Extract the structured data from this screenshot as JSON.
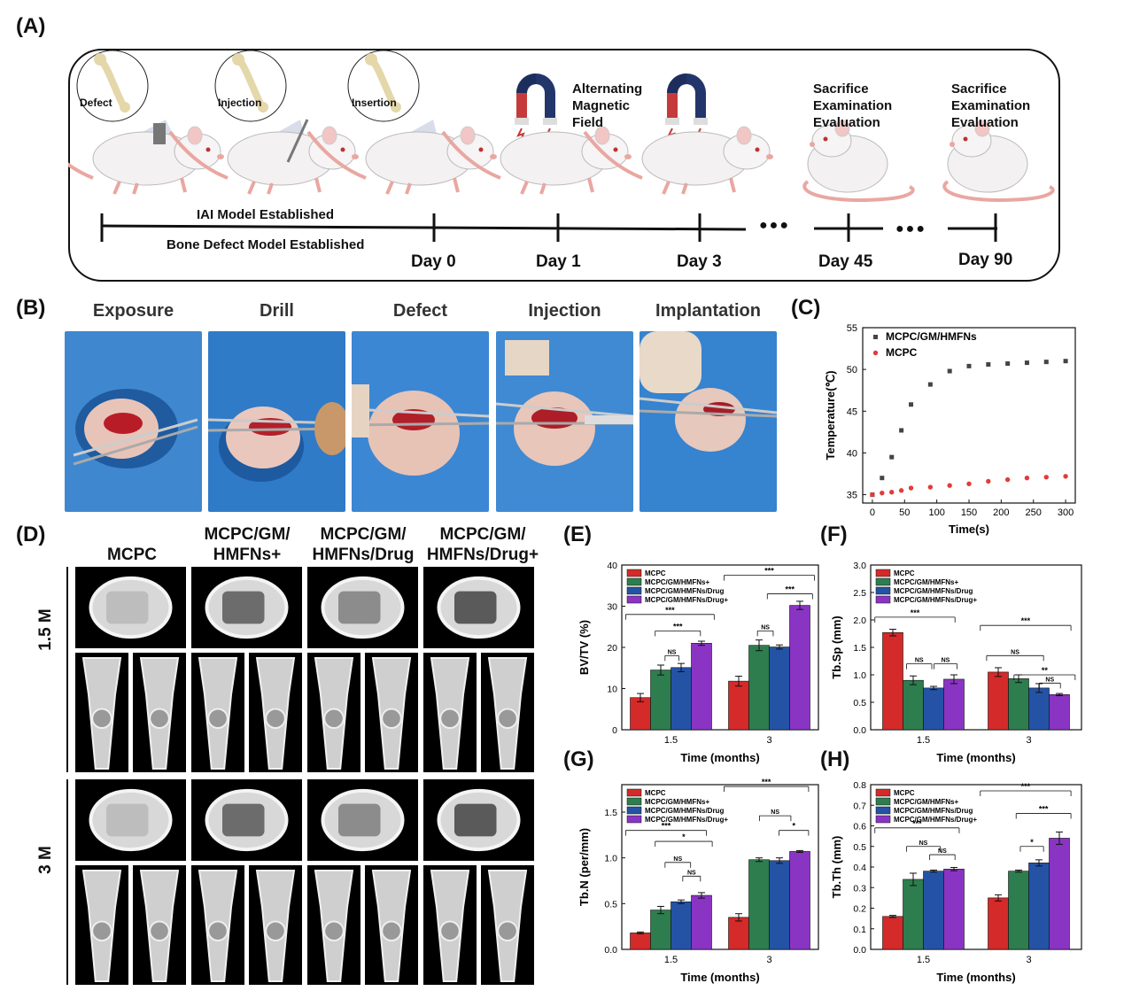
{
  "panel_labels": {
    "a": "(A)",
    "b": "(B)",
    "c": "(C)",
    "d": "(D)",
    "e": "(E)",
    "f": "(F)",
    "g": "(G)",
    "h": "(H)"
  },
  "timeline": {
    "steps": [
      "Defect",
      "Injection",
      "Insertion"
    ],
    "field_label": [
      "Alternating",
      "Magnetic",
      "Field"
    ],
    "sacrifice_label": [
      "Sacrifice",
      "Examination",
      "Evaluation"
    ],
    "model_top": "IAI Model Established",
    "model_bottom": "Bone Defect Model Established",
    "days": [
      "Day 0",
      "Day 1",
      "Day 3",
      "Day 45",
      "Day 90"
    ],
    "ellipsis": "●●●"
  },
  "surgery": {
    "titles": [
      "Exposure",
      "Drill",
      "Defect",
      "Injection",
      "Implantation"
    ]
  },
  "ct": {
    "columns": [
      "MCPC",
      "MCPC/GM/\nHMFNs+",
      "MCPC/GM/\nHMFNs/Drug",
      "MCPC/GM/\nHMFNs/Drug+"
    ],
    "rows": [
      "1.5 M",
      "3 M"
    ]
  },
  "colors": {
    "red": "#d42a2a",
    "green": "#2e7d4f",
    "blue": "#2453a6",
    "purple": "#8a34c4",
    "dark": "#444444",
    "pt_red": "#e23b3b"
  },
  "chart_data": [
    {
      "id": "C",
      "type": "scatter",
      "xlabel": "Time(s)",
      "ylabel": "Temperature(℃)",
      "xlim": [
        -15,
        315
      ],
      "ylim": [
        34,
        55
      ],
      "xticks": [
        0,
        50,
        100,
        150,
        200,
        250,
        300
      ],
      "yticks": [
        35,
        40,
        45,
        50,
        55
      ],
      "legend_position": "top-left",
      "series": [
        {
          "name": "MCPC/GM/HMFNs",
          "color": "#444444",
          "x": [
            0,
            15,
            30,
            45,
            60,
            90,
            120,
            150,
            180,
            210,
            240,
            270,
            300
          ],
          "y": [
            35.0,
            37.0,
            39.5,
            42.7,
            45.8,
            48.2,
            49.8,
            50.4,
            50.6,
            50.7,
            50.8,
            50.9,
            51.0
          ]
        },
        {
          "name": "MCPC",
          "color": "#e23b3b",
          "x": [
            0,
            15,
            30,
            45,
            60,
            90,
            120,
            150,
            180,
            210,
            240,
            270,
            300
          ],
          "y": [
            35.0,
            35.2,
            35.3,
            35.5,
            35.8,
            35.9,
            36.1,
            36.3,
            36.6,
            36.8,
            37.0,
            37.1,
            37.2
          ]
        }
      ]
    },
    {
      "id": "E",
      "type": "bar",
      "xlabel": "Time (months)",
      "ylabel": "BV/TV (%)",
      "categories": [
        "1.5",
        "3"
      ],
      "ylim": [
        0,
        40
      ],
      "yticks": [
        0,
        10,
        20,
        30,
        40
      ],
      "legend_position": "top-left",
      "series": [
        {
          "name": "MCPC",
          "values": [
            7.8,
            11.8
          ],
          "errors": [
            1.0,
            1.2
          ]
        },
        {
          "name": "MCPC/GM/HMFNs+",
          "values": [
            14.5,
            20.5
          ],
          "errors": [
            1.2,
            1.3
          ]
        },
        {
          "name": "MCPC/GM/HMFNs/Drug",
          "values": [
            15.1,
            20.1
          ],
          "errors": [
            1.0,
            0.5
          ]
        },
        {
          "name": "MCPC/GM/HMFNs/Drug+",
          "values": [
            21.0,
            30.2
          ],
          "errors": [
            0.5,
            1.0
          ]
        }
      ],
      "annotations": [
        "***",
        "***",
        "NS",
        "***",
        "***",
        "NS"
      ]
    },
    {
      "id": "F",
      "type": "bar",
      "xlabel": "Time (months)",
      "ylabel": "Tb.Sp (mm)",
      "categories": [
        "1.5",
        "3"
      ],
      "ylim": [
        0,
        3.0
      ],
      "yticks": [
        0.0,
        0.5,
        1.0,
        1.5,
        2.0,
        2.5,
        3.0
      ],
      "legend_position": "top-left",
      "series": [
        {
          "name": "MCPC",
          "values": [
            1.77,
            1.05
          ],
          "errors": [
            0.06,
            0.08
          ]
        },
        {
          "name": "MCPC/GM/HMFNs+",
          "values": [
            0.9,
            0.93
          ],
          "errors": [
            0.08,
            0.07
          ]
        },
        {
          "name": "MCPC/GM/HMFNs/Drug",
          "values": [
            0.76,
            0.76
          ],
          "errors": [
            0.03,
            0.08
          ]
        },
        {
          "name": "MCPC/GM/HMFNs/Drug+",
          "values": [
            0.92,
            0.64
          ],
          "errors": [
            0.08,
            0.02
          ]
        }
      ],
      "annotations": [
        "***",
        "NS",
        "NS",
        "***",
        "NS",
        "**",
        "NS"
      ]
    },
    {
      "id": "G",
      "type": "bar",
      "xlabel": "Time (months)",
      "ylabel": "Tb.N (per/mm)",
      "categories": [
        "1.5",
        "3"
      ],
      "ylim": [
        0,
        1.8
      ],
      "yticks": [
        0.0,
        0.5,
        1.0,
        1.5
      ],
      "legend_position": "top-left",
      "series": [
        {
          "name": "MCPC",
          "values": [
            0.18,
            0.35
          ],
          "errors": [
            0.01,
            0.04
          ]
        },
        {
          "name": "MCPC/GM/HMFNs+",
          "values": [
            0.43,
            0.98
          ],
          "errors": [
            0.04,
            0.02
          ]
        },
        {
          "name": "MCPC/GM/HMFNs/Drug",
          "values": [
            0.52,
            0.97
          ],
          "errors": [
            0.02,
            0.03
          ]
        },
        {
          "name": "MCPC/GM/HMFNs/Drug+",
          "values": [
            0.59,
            1.07
          ],
          "errors": [
            0.03,
            0.01
          ]
        }
      ],
      "annotations": [
        "***",
        "*",
        "NS",
        "NS",
        "***",
        "NS",
        "*"
      ]
    },
    {
      "id": "H",
      "type": "bar",
      "xlabel": "Time (months)",
      "ylabel": "Tb.Th (mm)",
      "categories": [
        "1.5",
        "3"
      ],
      "ylim": [
        0,
        0.8
      ],
      "yticks": [
        0.0,
        0.1,
        0.2,
        0.3,
        0.4,
        0.5,
        0.6,
        0.7,
        0.8
      ],
      "legend_position": "top-left",
      "series": [
        {
          "name": "MCPC",
          "values": [
            0.16,
            0.25
          ],
          "errors": [
            0.005,
            0.015
          ]
        },
        {
          "name": "MCPC/GM/HMFNs+",
          "values": [
            0.34,
            0.38
          ],
          "errors": [
            0.03,
            0.005
          ]
        },
        {
          "name": "MCPC/GM/HMFNs/Drug",
          "values": [
            0.38,
            0.42
          ],
          "errors": [
            0.005,
            0.015
          ]
        },
        {
          "name": "MCPC/GM/HMFNs/Drug+",
          "values": [
            0.39,
            0.54
          ],
          "errors": [
            0.008,
            0.03
          ]
        }
      ],
      "annotations": [
        "***",
        "NS",
        "NS",
        "***",
        "***",
        "*"
      ]
    }
  ]
}
